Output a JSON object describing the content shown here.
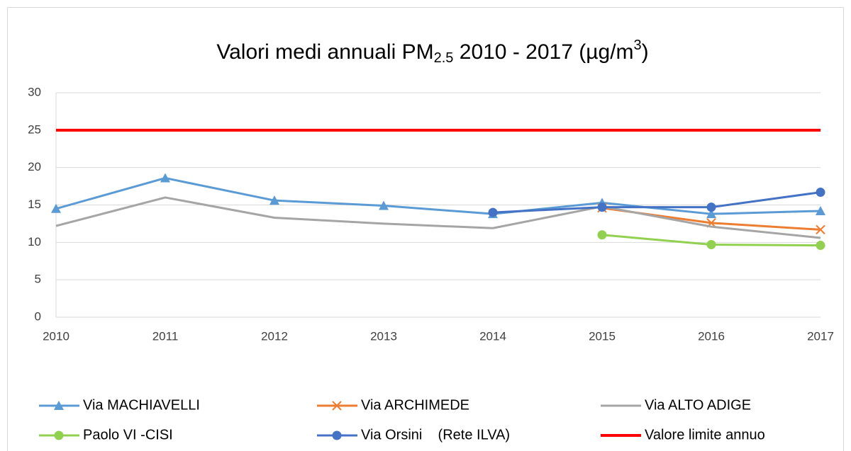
{
  "chart_data": {
    "type": "line",
    "title": [
      "Valori medi annuali PM",
      "2.5",
      " 2010 - 2017 (µg/m",
      "3",
      ")"
    ],
    "categories": [
      "2010",
      "2011",
      "2012",
      "2013",
      "2014",
      "2015",
      "2016",
      "2017"
    ],
    "ylim": [
      0,
      30
    ],
    "yticks": [
      0,
      5,
      10,
      15,
      20,
      25,
      30
    ],
    "grid": true,
    "series": [
      {
        "name": "Via MACHIAVELLI",
        "color": "#5b9bd5",
        "marker": "triangle",
        "values": [
          14.5,
          18.6,
          15.6,
          14.9,
          13.8,
          15.3,
          13.8,
          14.2
        ]
      },
      {
        "name": "Via ARCHIMEDE",
        "color": "#ed7d31",
        "marker": "x",
        "values": [
          null,
          null,
          null,
          null,
          null,
          14.6,
          12.6,
          11.7
        ]
      },
      {
        "name": "Via ALTO ADIGE",
        "color": "#a5a5a5",
        "marker": "none",
        "values": [
          12.2,
          16.0,
          13.3,
          12.5,
          11.9,
          14.8,
          12.1,
          10.6
        ]
      },
      {
        "name": "Paolo VI -CISI",
        "color": "#92d050",
        "marker": "circle",
        "values": [
          null,
          null,
          null,
          null,
          null,
          11.0,
          9.7,
          9.6
        ]
      },
      {
        "name": "Via Orsini    (Rete ILVA)",
        "color": "#4472c4",
        "marker": "circle",
        "values": [
          null,
          null,
          null,
          null,
          14.0,
          14.7,
          14.7,
          16.7
        ]
      },
      {
        "name": "Valore limite annuo",
        "color": "#ff0000",
        "marker": "none",
        "values": [
          25,
          25,
          25,
          25,
          25,
          25,
          25,
          25
        ]
      }
    ]
  }
}
